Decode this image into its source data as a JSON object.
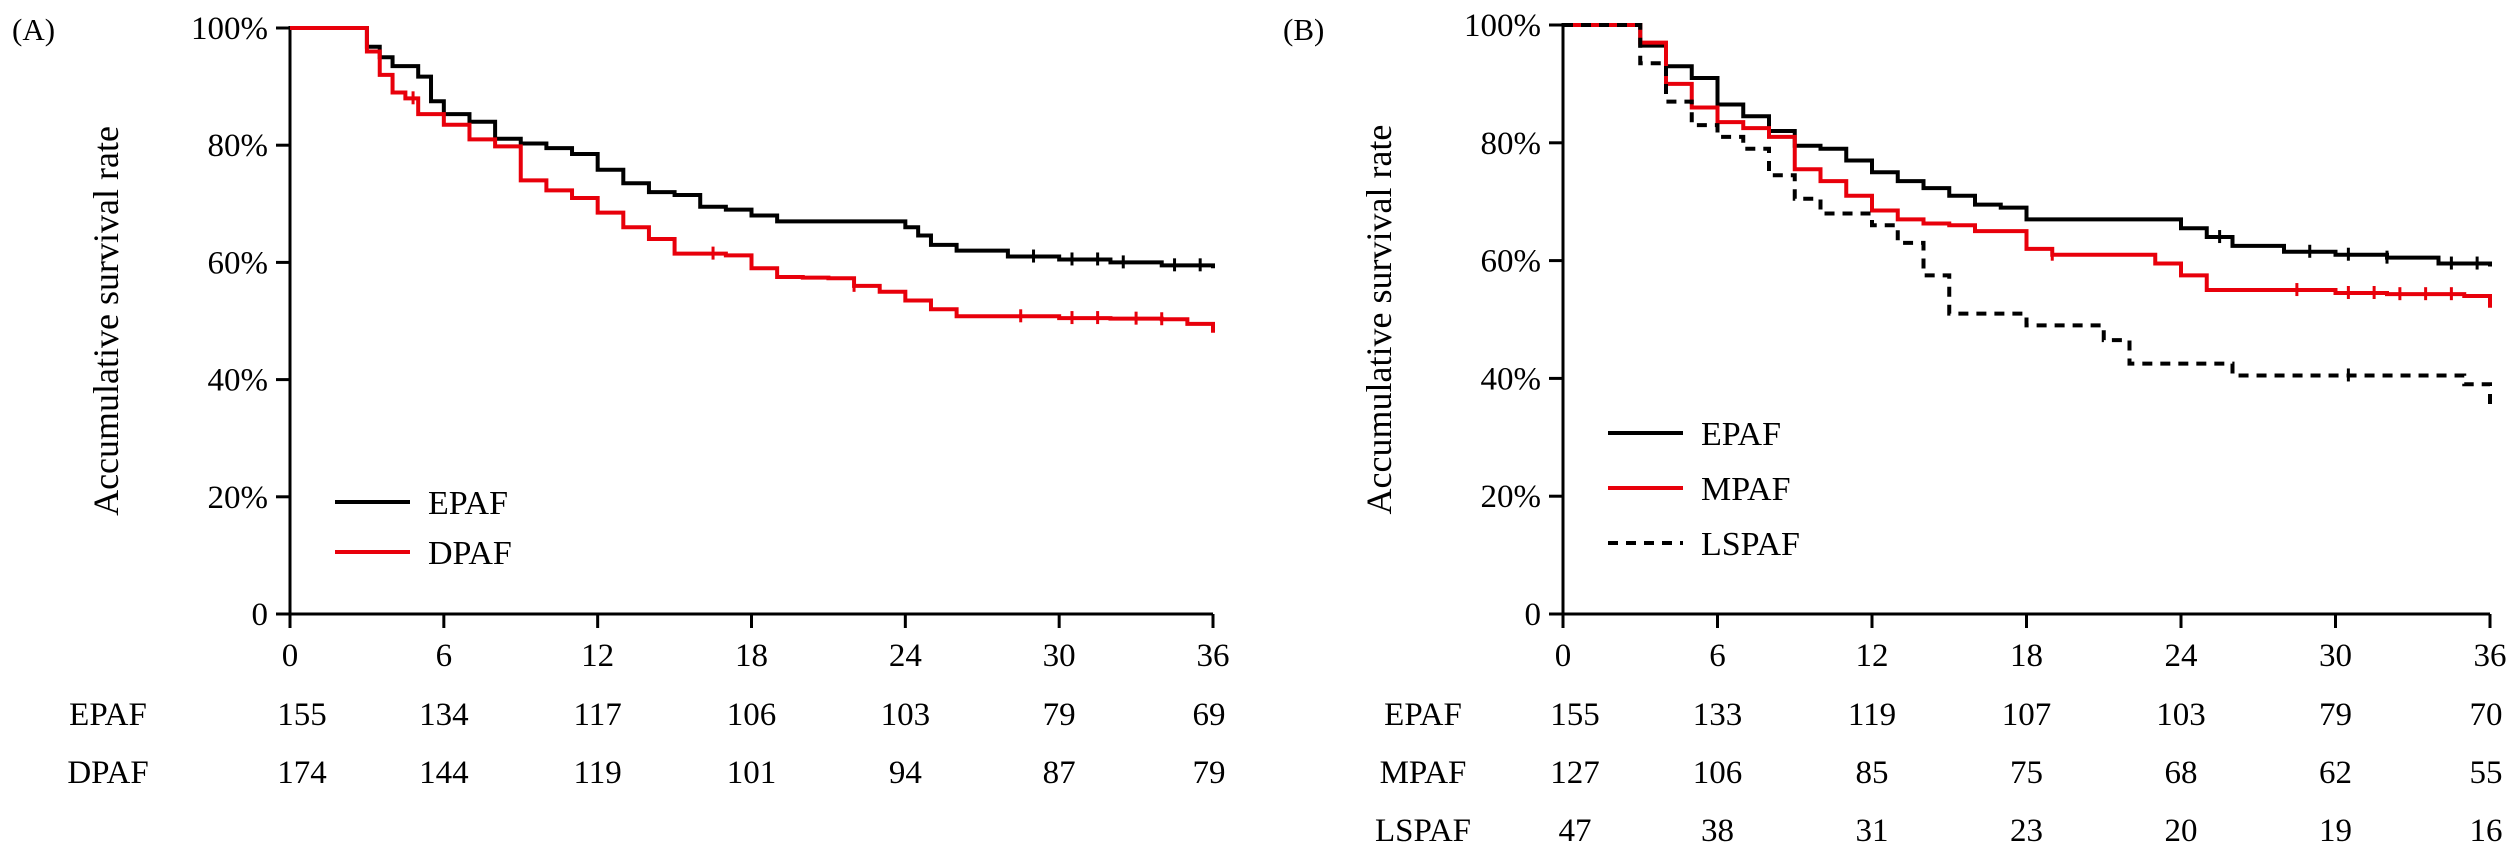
{
  "chart_data": [
    {
      "panel_label": "(A)",
      "type": "line",
      "ylabel": "Accumulative survival rate",
      "xlim": [
        0,
        36
      ],
      "ylim": [
        0,
        100
      ],
      "x_ticks": [
        "0",
        "6",
        "12",
        "18",
        "24",
        "30",
        "36"
      ],
      "y_ticks": [
        "0",
        "20%",
        "40%",
        "60%",
        "80%",
        "100%"
      ],
      "legend_position": "bottom-left",
      "series": [
        {
          "name": "EPAF",
          "color": "#000000",
          "dash": "solid",
          "x": [
            0,
            3,
            3.5,
            4,
            5,
            5.5,
            6,
            7,
            8,
            9,
            10,
            11,
            12,
            13,
            14,
            15,
            16,
            17,
            18,
            19,
            20,
            22,
            23,
            24,
            24.5,
            25,
            26,
            28,
            30,
            32,
            34,
            36
          ],
          "y": [
            100,
            96.8,
            95,
            93.5,
            91.7,
            87.5,
            85.3,
            84,
            81.1,
            80.3,
            79.5,
            78.5,
            75.8,
            73.5,
            72,
            71.5,
            69.5,
            69,
            68,
            67,
            67,
            67,
            67,
            66,
            64.6,
            63,
            62,
            61,
            60.5,
            60,
            59.5,
            59
          ],
          "censor_x": [
            29,
            30.5,
            31.5,
            32.5,
            34.5,
            35.5
          ]
        },
        {
          "name": "DPAF",
          "color": "#e8000b",
          "dash": "solid",
          "x": [
            0,
            3,
            3.5,
            4,
            4.5,
            5,
            6,
            7,
            8,
            9,
            10,
            11,
            12,
            13,
            14,
            15,
            17,
            18,
            19,
            20,
            21,
            22,
            23,
            24,
            25,
            26,
            28,
            30,
            32,
            34,
            35,
            36
          ],
          "y": [
            100,
            96,
            92,
            89,
            88,
            85.3,
            83.5,
            81,
            79.8,
            74,
            72.3,
            71,
            68.5,
            66,
            64,
            61.5,
            61.2,
            59,
            57.5,
            57.4,
            57.3,
            56,
            55,
            53.5,
            52,
            50.8,
            50.8,
            50.5,
            50.4,
            50.3,
            49.5,
            48
          ],
          "censor_x": [
            4.8,
            16.5,
            22,
            28.5,
            30.5,
            31.5,
            33,
            34
          ]
        }
      ],
      "risk_table": {
        "rows": [
          {
            "name": "EPAF",
            "values": [
              "155",
              "134",
              "117",
              "106",
              "103",
              "79",
              "69"
            ]
          },
          {
            "name": "DPAF",
            "values": [
              "174",
              "144",
              "119",
              "101",
              "94",
              "87",
              "79"
            ]
          }
        ]
      }
    },
    {
      "panel_label": "(B)",
      "type": "line",
      "ylabel": "Accumulative survival rate",
      "xlim": [
        0,
        36
      ],
      "ylim": [
        0,
        100
      ],
      "x_ticks": [
        "0",
        "6",
        "12",
        "18",
        "24",
        "30",
        "36"
      ],
      "y_ticks": [
        "0",
        "20%",
        "40%",
        "60%",
        "80%",
        "100%"
      ],
      "legend_position": "bottom-left",
      "series": [
        {
          "name": "EPAF",
          "color": "#000000",
          "dash": "solid",
          "x": [
            0,
            3,
            4,
            5,
            6,
            7,
            8,
            9,
            10,
            11,
            12,
            13,
            14,
            15,
            16,
            17,
            18,
            19,
            20,
            22,
            23,
            24,
            25,
            26,
            28,
            30,
            32,
            34,
            36
          ],
          "y": [
            100,
            96.5,
            93,
            91,
            86.5,
            84.5,
            82,
            79.5,
            79,
            77,
            75,
            73.5,
            72.3,
            71,
            69.5,
            69,
            67,
            67,
            67,
            67,
            67,
            65.5,
            64,
            62.5,
            61.5,
            61,
            60.5,
            59.5,
            59
          ],
          "censor_x": [
            25.5,
            29,
            30.5,
            32,
            34.5,
            35.5
          ]
        },
        {
          "name": "MPAF",
          "color": "#e8000b",
          "dash": "solid",
          "x": [
            0,
            3,
            4,
            5,
            6,
            7,
            8,
            9,
            10,
            11,
            12,
            13,
            14,
            15,
            16,
            17,
            18,
            19,
            20,
            22,
            23,
            24,
            25,
            26,
            28,
            30,
            32,
            34,
            35,
            36
          ],
          "y": [
            100,
            97,
            90,
            86,
            83.5,
            82.5,
            81,
            75.5,
            73.5,
            71,
            68.5,
            67,
            66.3,
            66,
            65,
            65,
            62,
            61,
            61,
            61,
            59.5,
            57.5,
            55,
            55,
            55,
            54.5,
            54.3,
            54.3,
            54,
            52
          ],
          "censor_x": [
            19,
            28.5,
            30.5,
            31.5,
            32.5,
            33.5,
            34.5
          ]
        },
        {
          "name": "LSPAF",
          "color": "#000000",
          "dash": "dashed",
          "x": [
            0,
            3,
            4,
            5,
            6,
            7,
            8,
            9,
            10,
            11,
            12,
            13,
            14,
            15,
            16,
            17,
            18,
            19,
            20,
            21,
            22,
            24,
            25,
            26,
            28,
            30,
            32,
            34,
            35,
            36
          ],
          "y": [
            100,
            93.5,
            87,
            83,
            81,
            79,
            74.5,
            70.5,
            68,
            68,
            66,
            63,
            57.5,
            51,
            51,
            51,
            49,
            49,
            49,
            46.5,
            42.5,
            42.5,
            42.5,
            40.5,
            40.5,
            40.5,
            40.5,
            40.5,
            39,
            35.5
          ],
          "censor_x": [
            30.5
          ]
        }
      ],
      "risk_table": {
        "rows": [
          {
            "name": "EPAF",
            "values": [
              "155",
              "133",
              "119",
              "107",
              "103",
              "79",
              "70"
            ]
          },
          {
            "name": "MPAF",
            "values": [
              "127",
              "106",
              "85",
              "75",
              "68",
              "62",
              "55"
            ]
          },
          {
            "name": "LSPAF",
            "values": [
              "47",
              "38",
              "31",
              "23",
              "20",
              "19",
              "16"
            ]
          }
        ]
      }
    }
  ]
}
